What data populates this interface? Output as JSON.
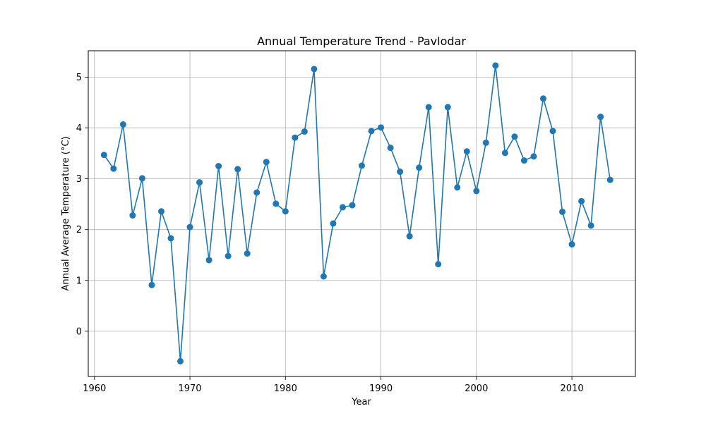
{
  "chart_data": {
    "type": "line",
    "title": "Annual Temperature Trend - Pavlodar",
    "xlabel": "Year",
    "ylabel": "Annual Average Temperature (°C)",
    "xlim": [
      1959.35,
      2016.65
    ],
    "ylim": [
      -0.89,
      5.52
    ],
    "xticks": [
      1960,
      1970,
      1980,
      1990,
      2000,
      2010
    ],
    "yticks": [
      0,
      1,
      2,
      3,
      4,
      5
    ],
    "xtick_labels": [
      "1960",
      "1970",
      "1980",
      "1990",
      "2000",
      "2010"
    ],
    "ytick_labels": [
      "0",
      "1",
      "2",
      "3",
      "4",
      "5"
    ],
    "grid": true,
    "marker": "circle",
    "color": "#1f77b4",
    "x": [
      1961,
      1962,
      1963,
      1964,
      1965,
      1966,
      1967,
      1968,
      1969,
      1970,
      1971,
      1972,
      1973,
      1974,
      1975,
      1976,
      1977,
      1978,
      1979,
      1980,
      1981,
      1982,
      1983,
      1984,
      1985,
      1986,
      1987,
      1988,
      1989,
      1990,
      1991,
      1992,
      1993,
      1994,
      1995,
      1996,
      1997,
      1998,
      1999,
      2000,
      2001,
      2002,
      2003,
      2004,
      2005,
      2006,
      2007,
      2008,
      2009,
      2010,
      2011,
      2012,
      2013,
      2014
    ],
    "y": [
      3.47,
      3.2,
      4.07,
      2.28,
      3.01,
      0.91,
      2.36,
      1.83,
      -0.59,
      2.05,
      2.93,
      1.4,
      3.25,
      1.48,
      3.19,
      1.53,
      2.73,
      3.33,
      2.51,
      2.36,
      3.81,
      3.93,
      5.16,
      1.08,
      2.12,
      2.44,
      2.48,
      3.26,
      3.94,
      4.01,
      3.61,
      3.14,
      1.87,
      3.22,
      4.41,
      1.32,
      4.41,
      2.83,
      3.54,
      2.76,
      3.71,
      5.23,
      3.51,
      3.83,
      3.36,
      3.44,
      4.58,
      3.94,
      2.35,
      1.71,
      2.56,
      2.08,
      4.22,
      2.98
    ]
  }
}
